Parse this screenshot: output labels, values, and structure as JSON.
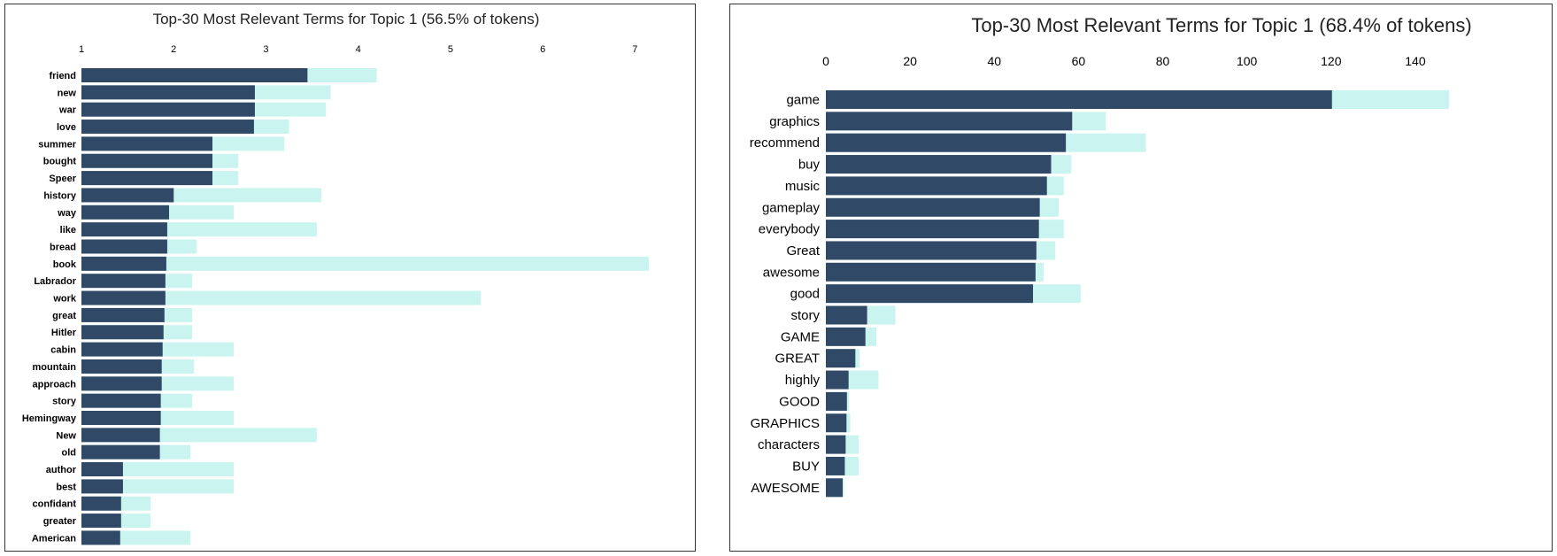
{
  "colors": {
    "estimated": "#c9f4ef",
    "selected": "#2f4966",
    "frame": "#333333"
  },
  "chart_data": [
    {
      "type": "bar",
      "title": "Top-30 Most Relevant Terms for Topic 1 (56.5% of tokens)",
      "xticks": [
        1,
        2,
        3,
        4,
        5,
        6,
        7
      ],
      "xlim": [
        1,
        7.15
      ],
      "axis_position": "top",
      "grid": false,
      "categories": [
        "friend",
        "new",
        "war",
        "love",
        "summer",
        "bought",
        "Speer",
        "history",
        "way",
        "like",
        "bread",
        "book",
        "Labrador",
        "work",
        "great",
        "Hitler",
        "cabin",
        "mountain",
        "approach",
        "story",
        "Hemingway",
        "New",
        "old",
        "author",
        "best",
        "confidant",
        "greater",
        "American"
      ],
      "series": [
        {
          "values": [
            4.2,
            3.7,
            3.65,
            3.25,
            3.2,
            2.7,
            2.7,
            3.6,
            2.65,
            3.55,
            2.25,
            7.15,
            2.2,
            5.33,
            2.2,
            2.2,
            2.65,
            2.22,
            2.65,
            2.2,
            2.65,
            3.55,
            2.18,
            2.65,
            2.65,
            1.75,
            1.75,
            2.18
          ]
        },
        {
          "values": [
            3.45,
            2.88,
            2.88,
            2.87,
            2.42,
            2.42,
            2.42,
            2.0,
            1.95,
            1.93,
            1.93,
            1.92,
            1.91,
            1.91,
            1.9,
            1.89,
            1.88,
            1.87,
            1.87,
            1.86,
            1.86,
            1.85,
            1.85,
            1.45,
            1.45,
            1.43,
            1.43,
            1.42
          ]
        }
      ]
    },
    {
      "type": "bar",
      "title": "Top-30 Most Relevant Terms for Topic 1 (68.4% of tokens)",
      "xticks": [
        0,
        20,
        40,
        60,
        80,
        100,
        120,
        140
      ],
      "xlim": [
        0,
        148
      ],
      "axis_position": "top",
      "grid": false,
      "categories": [
        "game",
        "graphics",
        "recommend",
        "buy",
        "music",
        "gameplay",
        "everybody",
        "Great",
        "awesome",
        "good",
        "story",
        "GAME",
        "GREAT",
        "highly",
        "GOOD",
        "GRAPHICS",
        "characters",
        "BUY",
        "AWESOME"
      ],
      "series": [
        {
          "values": [
            148,
            66.5,
            76,
            58.3,
            56.5,
            55.3,
            56.5,
            54.5,
            51.7,
            60.5,
            16.5,
            12,
            8,
            12.5,
            5.5,
            5.8,
            7.8,
            7.8,
            4.3
          ]
        },
        {
          "values": [
            120.2,
            58.5,
            57,
            53.5,
            52.5,
            50.8,
            50.6,
            50,
            49.8,
            49.2,
            9.8,
            9.4,
            7,
            5.4,
            5,
            4.9,
            4.7,
            4.5,
            4
          ]
        }
      ]
    }
  ]
}
